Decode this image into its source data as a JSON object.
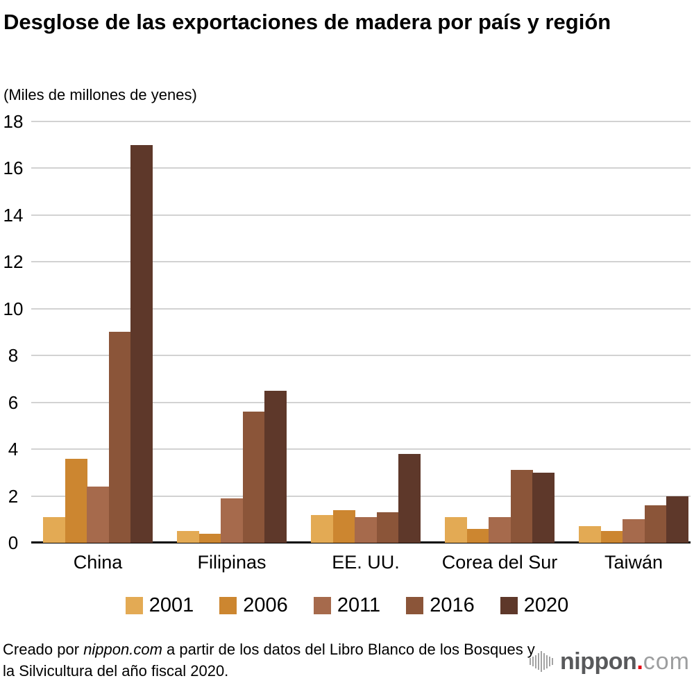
{
  "title": "Desglose de las exportaciones de madera por país y región",
  "subtitle": "(Miles de millones de yenes)",
  "chart_data": {
    "type": "bar",
    "title": "Desglose de las exportaciones de madera por país y región",
    "unit_label": "(Miles de millones de yenes)",
    "categories": [
      "China",
      "Filipinas",
      "EE. UU.",
      "Corea del Sur",
      "Taiwán"
    ],
    "series": [
      {
        "name": "2001",
        "color": "#e3aa54",
        "values": [
          1.1,
          0.5,
          1.2,
          1.1,
          0.7
        ]
      },
      {
        "name": "2006",
        "color": "#cc8630",
        "values": [
          3.6,
          0.4,
          1.4,
          0.6,
          0.5
        ]
      },
      {
        "name": "2011",
        "color": "#a66a4c",
        "values": [
          2.4,
          1.9,
          1.1,
          1.1,
          1.0
        ]
      },
      {
        "name": "2016",
        "color": "#8b5539",
        "values": [
          9.0,
          5.6,
          1.3,
          3.1,
          1.6
        ]
      },
      {
        "name": "2020",
        "color": "#5e382a",
        "values": [
          17.0,
          6.5,
          3.8,
          3.0,
          2.0
        ]
      }
    ],
    "ylim": [
      0,
      18
    ],
    "ytick_step": 2,
    "yticks": [
      0,
      2,
      4,
      6,
      8,
      10,
      12,
      14,
      16,
      18
    ],
    "grid": true,
    "legend_position": "bottom",
    "gridline_color": "#d2d2d2",
    "axis_color": "#000000"
  },
  "footer": {
    "source_prefix": "Creado por ",
    "source_brand": "nippon.com",
    "source_suffix": " a partir de los datos del Libro Blanco de los Bosques y la Silvicultura del año fiscal 2020.",
    "logo": {
      "name": "nippon",
      "dot": ".",
      "tld": "com",
      "dot_color": "#e60012",
      "icon": "soundwave-bars-icon"
    }
  }
}
